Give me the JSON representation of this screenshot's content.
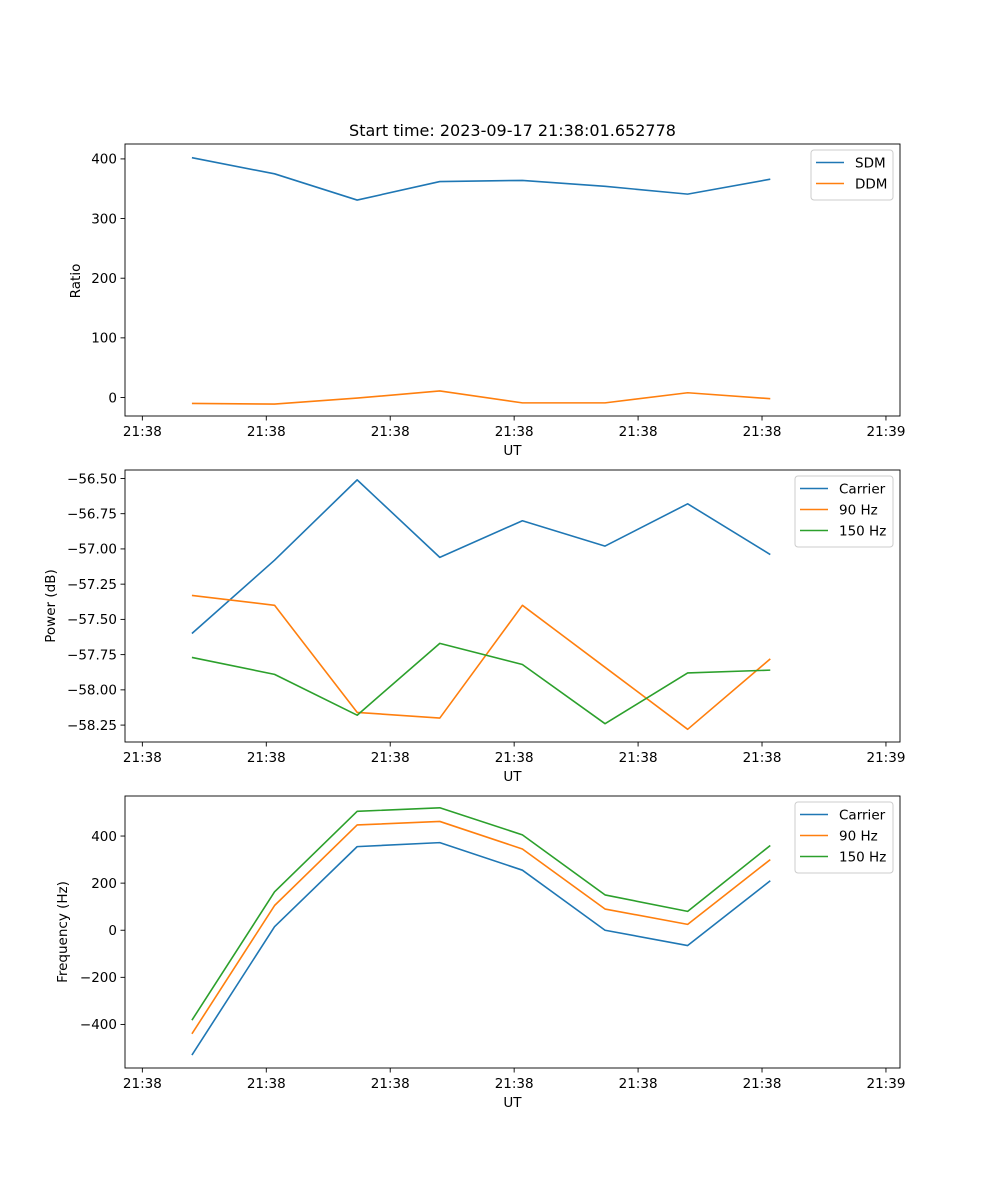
{
  "colors": {
    "blue": "#1f77b4",
    "orange": "#ff7f0e",
    "green": "#2ca02c"
  },
  "chart_data": [
    {
      "type": "line",
      "title": "Start time: 2023-09-17 21:38:01.652778",
      "xlabel": "UT",
      "ylabel": "Ratio",
      "x": [
        1,
        2,
        3,
        4,
        5,
        6,
        7,
        8
      ],
      "xlim": [
        0.19,
        9.57
      ],
      "x_ticks": [
        0.4,
        1.9,
        3.4,
        4.9,
        6.4,
        7.9,
        9.4
      ],
      "x_tick_labels": [
        "21:38",
        "21:38",
        "21:38",
        "21:38",
        "21:38",
        "21:38",
        "21:39"
      ],
      "ylim": [
        -31,
        425
      ],
      "y_ticks": [
        0,
        100,
        200,
        300,
        400
      ],
      "y_tick_labels": [
        "0",
        "100",
        "200",
        "300",
        "400"
      ],
      "legend_position": "top-right",
      "series": [
        {
          "name": "SDM",
          "color_key": "blue",
          "values": [
            402,
            375,
            331,
            362,
            364,
            354,
            341,
            366
          ]
        },
        {
          "name": "DDM",
          "color_key": "orange",
          "values": [
            -10,
            -11,
            -1,
            11,
            -9,
            -9,
            8,
            -2
          ]
        }
      ]
    },
    {
      "type": "line",
      "title": "",
      "xlabel": "UT",
      "ylabel": "Power (dB)",
      "x": [
        1,
        2,
        3,
        4,
        5,
        6,
        7,
        8
      ],
      "xlim": [
        0.19,
        9.57
      ],
      "x_ticks": [
        0.4,
        1.9,
        3.4,
        4.9,
        6.4,
        7.9,
        9.4
      ],
      "x_tick_labels": [
        "21:38",
        "21:38",
        "21:38",
        "21:38",
        "21:38",
        "21:38",
        "21:39"
      ],
      "ylim": [
        -58.37,
        -56.44
      ],
      "y_ticks": [
        -56.5,
        -56.75,
        -57.0,
        -57.25,
        -57.5,
        -57.75,
        -58.0,
        -58.25
      ],
      "y_tick_labels": [
        "−56.50",
        "−56.75",
        "−57.00",
        "−57.25",
        "−57.50",
        "−57.75",
        "−58.00",
        "−58.25"
      ],
      "legend_position": "top-right",
      "series": [
        {
          "name": "Carrier",
          "color_key": "blue",
          "values": [
            -57.6,
            -57.08,
            -56.51,
            -57.06,
            -56.8,
            -56.98,
            -56.68,
            -57.04
          ]
        },
        {
          "name": "90 Hz",
          "color_key": "orange",
          "values": [
            -57.33,
            -57.4,
            -58.16,
            -58.2,
            -57.4,
            -57.84,
            -58.28,
            -57.78
          ]
        },
        {
          "name": "150 Hz",
          "color_key": "green",
          "values": [
            -57.77,
            -57.89,
            -58.18,
            -57.67,
            -57.82,
            -58.24,
            -57.88,
            -57.86
          ]
        }
      ]
    },
    {
      "type": "line",
      "title": "",
      "xlabel": "UT",
      "ylabel": "Frequency (Hz)",
      "x": [
        1,
        2,
        3,
        4,
        5,
        6,
        7,
        8
      ],
      "xlim": [
        0.19,
        9.57
      ],
      "x_ticks": [
        0.4,
        1.9,
        3.4,
        4.9,
        6.4,
        7.9,
        9.4
      ],
      "x_tick_labels": [
        "21:38",
        "21:38",
        "21:38",
        "21:38",
        "21:38",
        "21:38",
        "21:39"
      ],
      "ylim": [
        -585,
        570
      ],
      "y_ticks": [
        -400,
        -200,
        0,
        200,
        400
      ],
      "y_tick_labels": [
        "−400",
        "−200",
        "0",
        "200",
        "400"
      ],
      "legend_position": "top-right",
      "series": [
        {
          "name": "Carrier",
          "color_key": "blue",
          "values": [
            -530,
            15,
            355,
            372,
            255,
            0,
            -65,
            210
          ]
        },
        {
          "name": "90 Hz",
          "color_key": "orange",
          "values": [
            -440,
            105,
            447,
            462,
            345,
            90,
            25,
            300
          ]
        },
        {
          "name": "150 Hz",
          "color_key": "green",
          "values": [
            -382,
            163,
            505,
            520,
            405,
            150,
            80,
            360
          ]
        }
      ]
    }
  ]
}
